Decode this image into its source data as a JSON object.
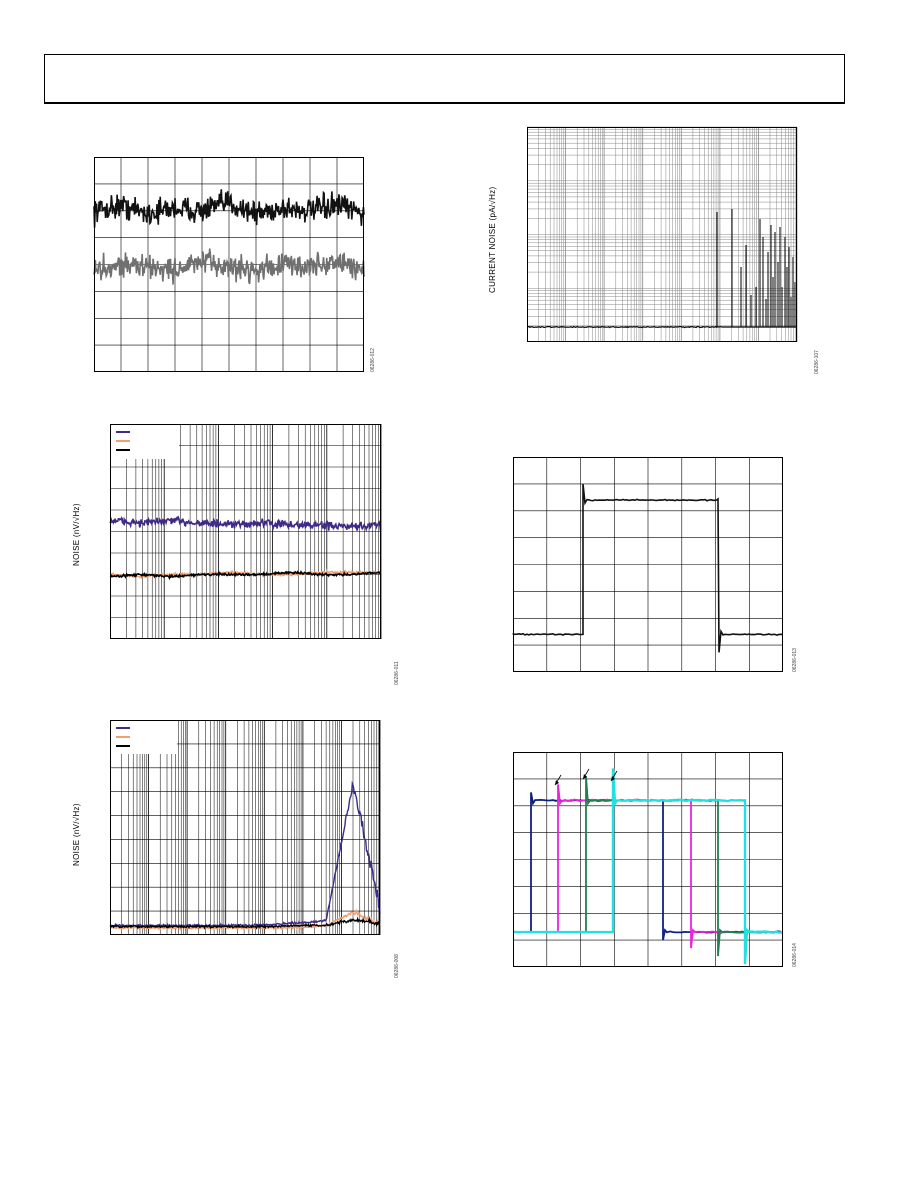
{
  "page": {
    "figures": [
      {
        "id": "fig-1",
        "figure_code": "06286-012",
        "ylabel": "",
        "legend": []
      },
      {
        "id": "fig-2",
        "figure_code": "06286-011",
        "ylabel": "NOISE (nV/√Hz)",
        "legend": [
          {
            "color": "#3f2a8a"
          },
          {
            "color": "#f0a070"
          },
          {
            "color": "#000000"
          }
        ]
      },
      {
        "id": "fig-3",
        "figure_code": "06286-008",
        "ylabel": "NOISE (nV/√Hz)",
        "legend": [
          {
            "color": "#3f2a8a"
          },
          {
            "color": "#f0a070"
          },
          {
            "color": "#000000"
          }
        ]
      },
      {
        "id": "fig-4",
        "figure_code": "06286-107",
        "ylabel": "CURRENT NOISE (pA/√Hz)",
        "legend": []
      },
      {
        "id": "fig-5",
        "figure_code": "06286-013",
        "ylabel": "",
        "legend": []
      },
      {
        "id": "fig-6",
        "figure_code": "06286-014",
        "ylabel": "",
        "legend": []
      }
    ]
  },
  "chart_data": [
    {
      "type": "line",
      "title": "",
      "xlabel": "",
      "ylabel": "",
      "grid": true,
      "xlim": [
        0,
        10
      ],
      "ylim": [
        0,
        8
      ],
      "series": [
        {
          "color": "#111111",
          "values": [
            6.0,
            6.2,
            5.9,
            6.1,
            6.0,
            6.3,
            5.9,
            6.1,
            6.0,
            6.2,
            5.9
          ]
        },
        {
          "color": "#707070",
          "values": [
            3.8,
            4.0,
            3.9,
            3.8,
            4.1,
            3.9,
            3.8,
            4.0,
            3.9,
            4.1,
            3.8
          ]
        }
      ]
    },
    {
      "type": "line",
      "title": "",
      "xlabel": "",
      "ylabel": "NOISE (nV/√Hz)",
      "grid": true,
      "xscale": "log",
      "xlim": [
        1,
        100000
      ],
      "ylim": [
        0,
        10
      ],
      "legend_position": "top-left",
      "series": [
        {
          "color": "#3f2a8a",
          "values": [
            5.5,
            5.4,
            5.5,
            5.4,
            5.3,
            5.4,
            5.3,
            5.3,
            5.2,
            5.3
          ]
        },
        {
          "color": "#f0a070",
          "values": [
            3.0,
            2.9,
            3.0,
            3.0,
            3.1,
            3.0,
            3.0,
            3.1,
            3.1,
            3.1
          ]
        },
        {
          "color": "#000000",
          "values": [
            2.9,
            3.0,
            2.9,
            3.0,
            3.0,
            3.0,
            3.1,
            3.0,
            3.0,
            3.1
          ]
        }
      ]
    },
    {
      "type": "line",
      "title": "",
      "xlabel": "",
      "ylabel": "NOISE (nV/√Hz)",
      "grid": true,
      "xscale": "log",
      "xlim": [
        1,
        10000000
      ],
      "ylim": [
        0,
        9
      ],
      "legend_position": "top-left",
      "series": [
        {
          "color": "#3f2a8a",
          "values": [
            0.4,
            0.4,
            0.4,
            0.4,
            0.4,
            0.4,
            0.45,
            0.5,
            0.6,
            6.2,
            0.8
          ]
        },
        {
          "color": "#f0a070",
          "values": [
            0.3,
            0.3,
            0.3,
            0.3,
            0.3,
            0.3,
            0.3,
            0.3,
            0.4,
            0.9,
            0.4
          ]
        },
        {
          "color": "#000000",
          "values": [
            0.35,
            0.35,
            0.35,
            0.35,
            0.35,
            0.35,
            0.35,
            0.4,
            0.4,
            0.6,
            0.4
          ]
        }
      ]
    },
    {
      "type": "line",
      "title": "",
      "xlabel": "",
      "ylabel": "CURRENT NOISE (pA/√Hz)",
      "grid": true,
      "xscale": "log",
      "yscale": "log",
      "xlim": [
        1,
        10000000
      ],
      "series": [
        {
          "color": "#000000",
          "baseline": 0.04,
          "values": [
            0.04,
            0.04,
            0.04,
            0.04,
            0.04,
            0.04,
            0.04,
            0.04,
            0.04,
            0.04
          ]
        }
      ]
    },
    {
      "type": "line",
      "title": "",
      "xlabel": "",
      "ylabel": "",
      "grid": true,
      "xlim": [
        0,
        7
      ],
      "ylim": [
        0,
        8
      ],
      "series": [
        {
          "color": "#111111",
          "values": [
            1.4,
            1.4,
            1.4,
            6.5,
            6.4,
            6.4,
            6.4,
            6.5,
            1.4,
            1.4,
            1.4
          ]
        }
      ]
    },
    {
      "type": "line",
      "title": "",
      "xlabel": "",
      "ylabel": "",
      "grid": true,
      "xlim": [
        0,
        8
      ],
      "ylim": [
        0,
        8
      ],
      "series": [
        {
          "color": "#102080",
          "values": [
            1.3,
            6.2,
            6.2,
            6.2,
            6.2,
            1.3,
            1.3,
            1.3
          ]
        },
        {
          "color": "#ee22dd",
          "values": [
            1.3,
            1.3,
            6.2,
            6.2,
            6.2,
            6.2,
            1.3,
            1.3
          ]
        },
        {
          "color": "#208050",
          "values": [
            1.3,
            1.3,
            1.3,
            6.2,
            6.2,
            6.2,
            6.2,
            1.3
          ]
        },
        {
          "color": "#20e0e0",
          "values": [
            1.3,
            1.3,
            1.3,
            1.3,
            6.2,
            6.2,
            6.2,
            1.3
          ]
        }
      ]
    }
  ]
}
